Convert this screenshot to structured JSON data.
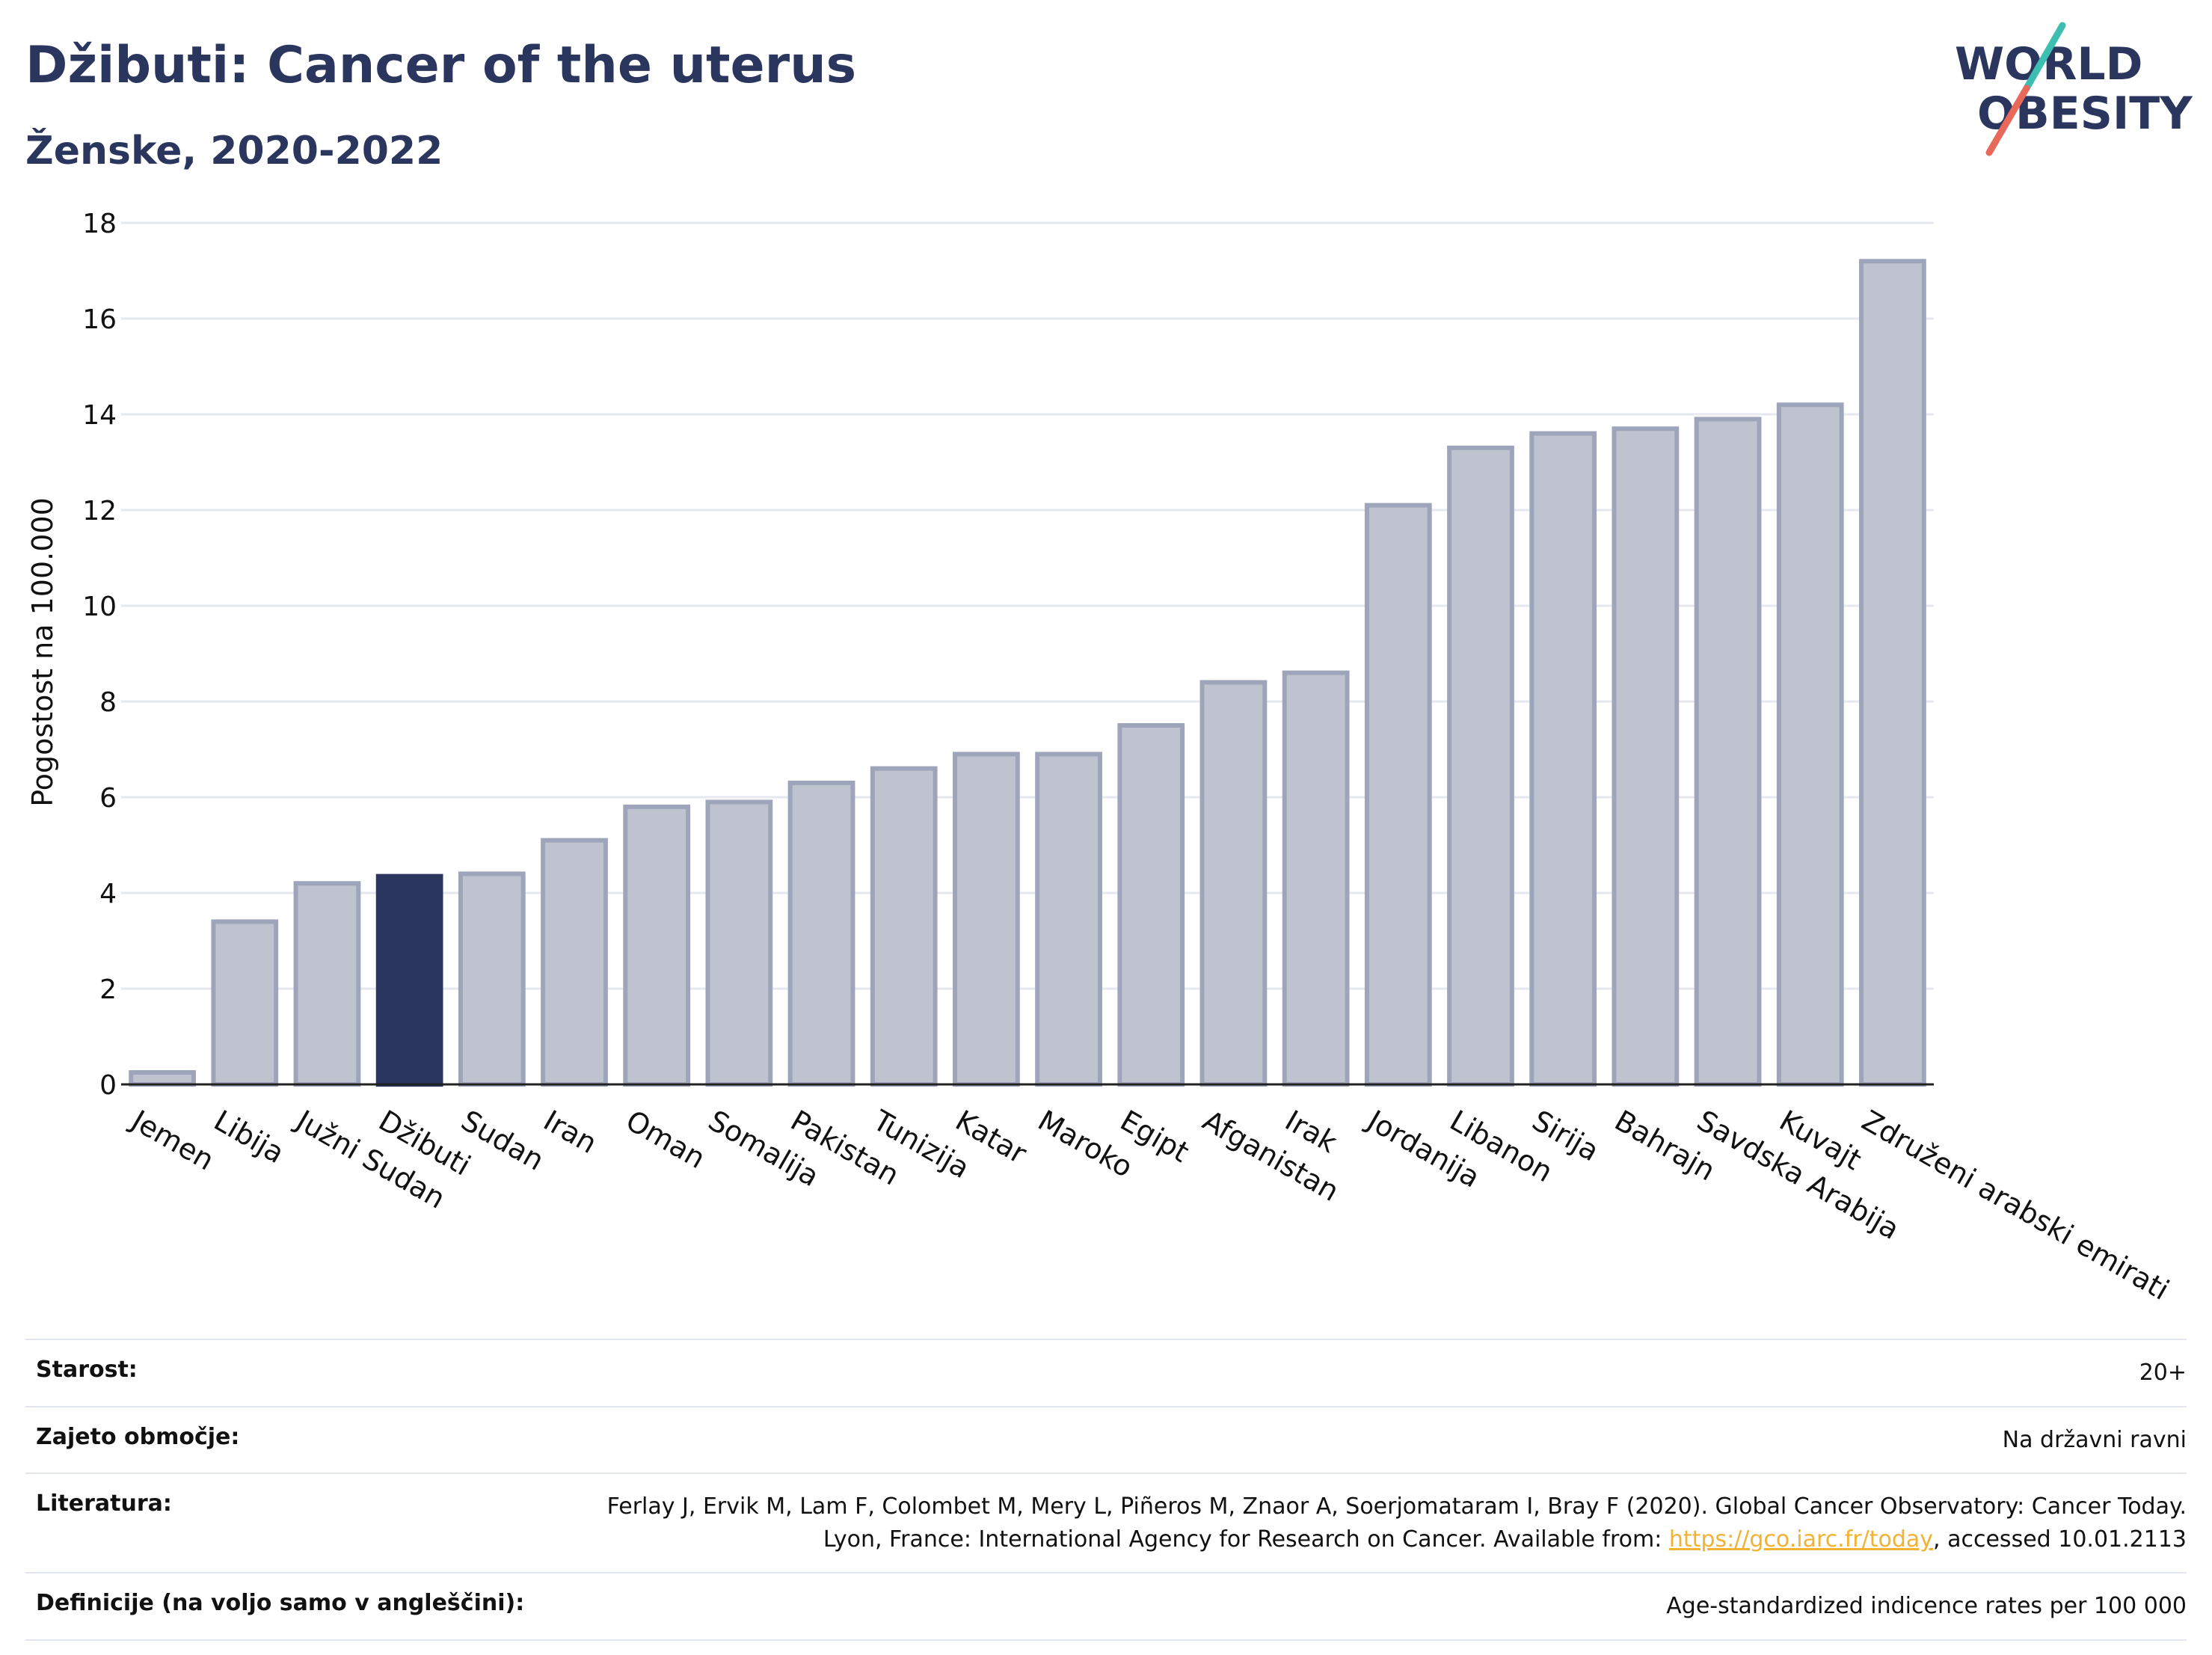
{
  "header": {
    "title": "Džibuti: Cancer of the uterus",
    "subtitle": "Ženske, 2020-2022"
  },
  "logo": {
    "line1": "WORLD",
    "line2": "OBESITY",
    "colors": {
      "text": "#2b365f",
      "slash_top": "#3cbfb1",
      "slash_bottom": "#e8685a"
    }
  },
  "colors": {
    "bar": "#bfc3d0",
    "bar_border": "#9ea4ba",
    "highlight": "#2b365f",
    "grid": "#e6e8ef",
    "axis": "#222222"
  },
  "chart_data": {
    "type": "bar",
    "title": "Džibuti: Cancer of the uterus",
    "subtitle": "Ženske, 2020-2022",
    "xlabel": "",
    "ylabel": "Pogostost na 100.000",
    "ylim": [
      0,
      18
    ],
    "yticks": [
      0,
      2,
      4,
      6,
      8,
      10,
      12,
      14,
      16,
      18
    ],
    "grid": true,
    "highlight": "Džibuti",
    "categories": [
      "Jemen",
      "Libija",
      "Južni Sudan",
      "Džibuti",
      "Sudan",
      "Iran",
      "Oman",
      "Somalija",
      "Pakistan",
      "Tunizija",
      "Katar",
      "Maroko",
      "Egipt",
      "Afganistan",
      "Irak",
      "Jordanija",
      "Libanon",
      "Sirija",
      "Bahrajn",
      "Savdska Arabija",
      "Kuvajt",
      "Združeni arabski emirati"
    ],
    "values": [
      0.25,
      3.4,
      4.2,
      4.35,
      4.4,
      5.1,
      5.8,
      5.9,
      6.3,
      6.6,
      6.9,
      6.9,
      7.5,
      8.4,
      8.6,
      12.1,
      13.3,
      13.6,
      13.7,
      13.9,
      14.2,
      17.2
    ]
  },
  "info": [
    {
      "label": "Starost:",
      "value": "20+"
    },
    {
      "label": "Zajeto območje:",
      "value": "Na državni ravni"
    },
    {
      "label": "Literatura:",
      "value_pre": "Ferlay J, Ervik M, Lam F, Colombet M, Mery L, Piñeros M, Znaor A, Soerjomataram I, Bray F (2020). Global Cancer Observatory: Cancer Today. Lyon, France: International Agency for Research on Cancer. Available from: ",
      "link": "https://gco.iarc.fr/today",
      "value_post": ", accessed 10.01.2113"
    },
    {
      "label": "Definicije (na voljo samo v angleščini):",
      "value": "Age-standardized indicence rates per 100 000"
    }
  ]
}
